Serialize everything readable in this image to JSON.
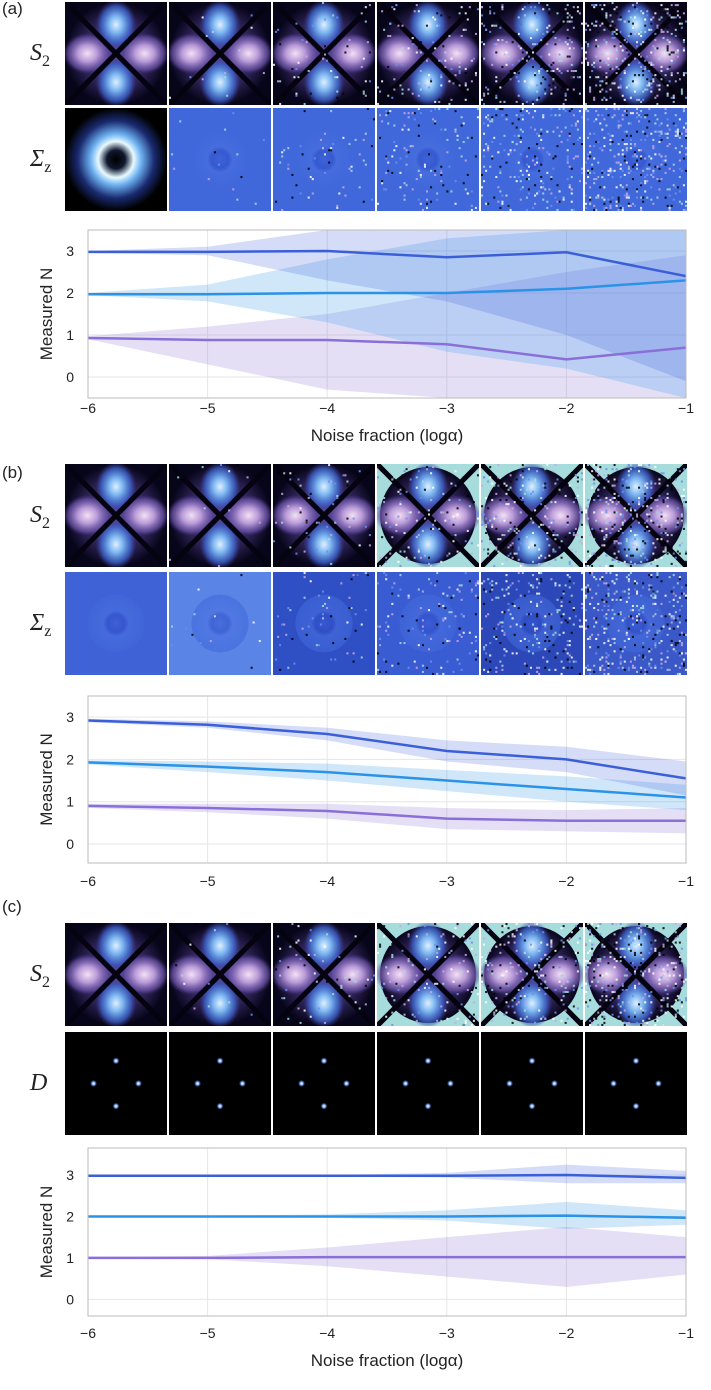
{
  "panels": [
    {
      "label": "(a)",
      "rows": [
        {
          "base": "S",
          "sub": "2"
        },
        {
          "base": "Σ",
          "sub": "z"
        }
      ]
    },
    {
      "label": "(b)",
      "rows": [
        {
          "base": "S",
          "sub": "2"
        },
        {
          "base": "Σ",
          "sub": "z"
        }
      ]
    },
    {
      "label": "(c)",
      "rows": [
        {
          "base": "S",
          "sub": "2"
        },
        {
          "base": "D",
          "sub": ""
        }
      ]
    }
  ],
  "chart_data": [
    {
      "type": "line",
      "ylabel": "Measured N",
      "xlabel": "Noise fraction (logα)",
      "grid": true,
      "x": [
        -6,
        -5,
        -4,
        -3,
        -2,
        -1
      ],
      "xlim": [
        -6,
        -1
      ],
      "xticks": [
        {
          "value": -6,
          "label": "−6"
        },
        {
          "value": -5,
          "label": "−5"
        },
        {
          "value": -4,
          "label": "−4"
        },
        {
          "value": -3,
          "label": "−3"
        },
        {
          "value": -2,
          "label": "−2"
        },
        {
          "value": -1,
          "label": "−1"
        }
      ],
      "ylim": [
        -0.5,
        3.5
      ],
      "yticks": [
        0,
        1,
        2,
        3
      ],
      "series": [
        {
          "color": "#8a6fd8",
          "values": [
            0.93,
            0.88,
            0.88,
            0.78,
            0.42,
            0.7
          ],
          "lower": [
            0.9,
            0.3,
            -0.3,
            -0.5,
            -0.5,
            -0.5
          ],
          "upper": [
            0.97,
            1.2,
            1.5,
            2.0,
            2.5,
            2.9
          ]
        },
        {
          "color": "#2a93e8",
          "values": [
            1.97,
            1.97,
            2.0,
            2.0,
            2.1,
            2.3
          ],
          "lower": [
            1.95,
            1.8,
            1.3,
            0.6,
            0.2,
            -0.5
          ],
          "upper": [
            2.0,
            2.2,
            2.8,
            3.3,
            3.5,
            3.5
          ]
        },
        {
          "color": "#3a5fd9",
          "values": [
            2.98,
            2.98,
            3.0,
            2.85,
            2.97,
            2.4
          ],
          "lower": [
            2.95,
            2.9,
            2.3,
            1.8,
            1.0,
            -0.1
          ],
          "upper": [
            3.0,
            3.1,
            3.5,
            3.5,
            3.5,
            3.5
          ]
        }
      ]
    },
    {
      "type": "line",
      "ylabel": "Measured N",
      "grid": true,
      "x": [
        -6,
        -5,
        -4,
        -3,
        -2,
        -1
      ],
      "xlim": [
        -6,
        -1
      ],
      "xticks": [
        {
          "value": -6,
          "label": "−6"
        },
        {
          "value": -5,
          "label": "−5"
        },
        {
          "value": -4,
          "label": "−4"
        },
        {
          "value": -3,
          "label": "−3"
        },
        {
          "value": -2,
          "label": "−2"
        },
        {
          "value": -1,
          "label": "−1"
        }
      ],
      "ylim": [
        -0.45,
        3.5
      ],
      "yticks": [
        0,
        1,
        2,
        3
      ],
      "series": [
        {
          "color": "#8a6fd8",
          "values": [
            0.9,
            0.85,
            0.78,
            0.6,
            0.55,
            0.55
          ],
          "lower": [
            0.85,
            0.75,
            0.6,
            0.35,
            0.3,
            0.25
          ],
          "upper": [
            0.95,
            0.95,
            0.95,
            0.85,
            0.8,
            0.85
          ]
        },
        {
          "color": "#2a93e8",
          "values": [
            1.93,
            1.83,
            1.7,
            1.5,
            1.3,
            1.1
          ],
          "lower": [
            1.88,
            1.7,
            1.5,
            1.25,
            1.0,
            0.8
          ],
          "upper": [
            1.98,
            1.95,
            1.9,
            1.75,
            1.6,
            1.4
          ]
        },
        {
          "color": "#3a5fd9",
          "values": [
            2.92,
            2.82,
            2.6,
            2.2,
            2.0,
            1.55
          ],
          "lower": [
            2.88,
            2.75,
            2.45,
            1.95,
            1.7,
            1.15
          ],
          "upper": [
            2.96,
            2.9,
            2.75,
            2.45,
            2.3,
            1.95
          ]
        }
      ]
    },
    {
      "type": "line",
      "ylabel": "Measured N",
      "xlabel": "Noise fraction (logα)",
      "grid": true,
      "x": [
        -6,
        -5,
        -4,
        -3,
        -2,
        -1
      ],
      "xlim": [
        -6,
        -1
      ],
      "xticks": [
        {
          "value": -6,
          "label": "−6"
        },
        {
          "value": -5,
          "label": "−5"
        },
        {
          "value": -4,
          "label": "−4"
        },
        {
          "value": -3,
          "label": "−3"
        },
        {
          "value": -2,
          "label": "−2"
        },
        {
          "value": -1,
          "label": "−1"
        }
      ],
      "ylim": [
        -0.4,
        3.65
      ],
      "yticks": [
        0,
        1,
        2,
        3
      ],
      "series": [
        {
          "color": "#8a6fd8",
          "values": [
            1.0,
            1.0,
            1.02,
            1.02,
            1.02,
            1.02
          ],
          "lower": [
            0.98,
            0.97,
            0.8,
            0.55,
            0.3,
            0.6
          ],
          "upper": [
            1.02,
            1.05,
            1.25,
            1.5,
            1.75,
            1.5
          ]
        },
        {
          "color": "#2a93e8",
          "values": [
            2.0,
            2.0,
            2.0,
            2.0,
            2.02,
            1.97
          ],
          "lower": [
            1.98,
            1.98,
            1.97,
            1.9,
            1.7,
            1.8
          ],
          "upper": [
            2.02,
            2.02,
            2.05,
            2.15,
            2.35,
            2.15
          ]
        },
        {
          "color": "#3a5fd9",
          "values": [
            2.98,
            2.98,
            2.98,
            2.98,
            3.0,
            2.93
          ],
          "lower": [
            2.96,
            2.96,
            2.96,
            2.94,
            2.8,
            2.8
          ],
          "upper": [
            3.0,
            3.0,
            3.0,
            3.05,
            3.25,
            3.1
          ]
        }
      ]
    }
  ]
}
